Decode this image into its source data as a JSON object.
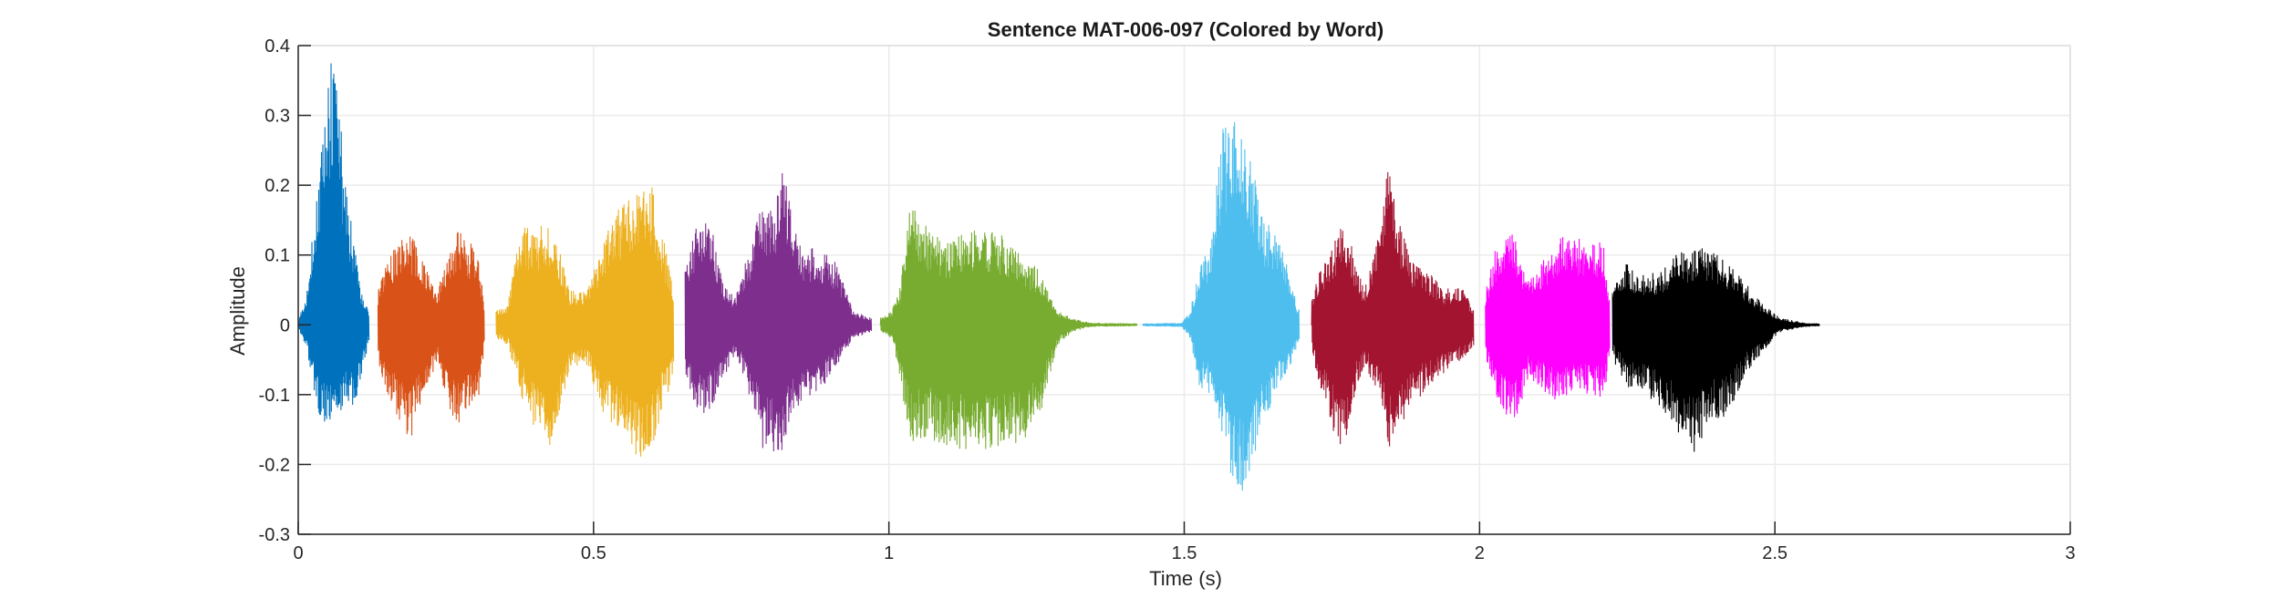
{
  "chart_data": {
    "type": "line",
    "title": "Sentence MAT-006-097 (Colored by Word)",
    "xlabel": "Time (s)",
    "ylabel": "Amplitude",
    "xlim": [
      0,
      3
    ],
    "ylim": [
      -0.3,
      0.4
    ],
    "grid": true,
    "x_ticks": [
      0,
      0.5,
      1,
      1.5,
      2,
      2.5,
      3
    ],
    "x_tick_labels": [
      "0",
      "0.5",
      "1",
      "1.5",
      "2",
      "2.5",
      "3"
    ],
    "y_ticks": [
      -0.3,
      -0.2,
      -0.1,
      0,
      0.1,
      0.2,
      0.3,
      0.4
    ],
    "y_tick_labels": [
      "-0.3",
      "-0.2",
      "-0.1",
      "0",
      "0.1",
      "0.2",
      "0.3",
      "0.4"
    ],
    "series": [
      {
        "color": "#0072BD",
        "envelope": [
          [
            0.0,
            0.005,
            -0.005
          ],
          [
            0.015,
            0.05,
            -0.04
          ],
          [
            0.03,
            0.18,
            -0.12
          ],
          [
            0.045,
            0.3,
            -0.15
          ],
          [
            0.055,
            0.38,
            -0.15
          ],
          [
            0.065,
            0.37,
            -0.14
          ],
          [
            0.08,
            0.2,
            -0.12
          ],
          [
            0.095,
            0.12,
            -0.12
          ],
          [
            0.105,
            0.05,
            -0.08
          ],
          [
            0.12,
            0.02,
            -0.02
          ]
        ]
      },
      {
        "color": "#D95319",
        "envelope": [
          [
            0.135,
            0.05,
            -0.06
          ],
          [
            0.155,
            0.1,
            -0.11
          ],
          [
            0.17,
            0.12,
            -0.14
          ],
          [
            0.19,
            0.13,
            -0.17
          ],
          [
            0.205,
            0.11,
            -0.12
          ],
          [
            0.225,
            0.06,
            -0.08
          ],
          [
            0.235,
            0.05,
            -0.05
          ],
          [
            0.255,
            0.1,
            -0.13
          ],
          [
            0.27,
            0.14,
            -0.15
          ],
          [
            0.29,
            0.12,
            -0.12
          ],
          [
            0.305,
            0.1,
            -0.12
          ],
          [
            0.315,
            0.03,
            -0.03
          ]
        ]
      },
      {
        "color": "#EDB120",
        "envelope": [
          [
            0.335,
            0.02,
            -0.02
          ],
          [
            0.355,
            0.03,
            -0.03
          ],
          [
            0.375,
            0.14,
            -0.1
          ],
          [
            0.405,
            0.14,
            -0.16
          ],
          [
            0.43,
            0.15,
            -0.18
          ],
          [
            0.46,
            0.05,
            -0.06
          ],
          [
            0.49,
            0.05,
            -0.06
          ],
          [
            0.51,
            0.1,
            -0.12
          ],
          [
            0.535,
            0.16,
            -0.15
          ],
          [
            0.56,
            0.18,
            -0.18
          ],
          [
            0.58,
            0.2,
            -0.19
          ],
          [
            0.6,
            0.2,
            -0.18
          ],
          [
            0.615,
            0.14,
            -0.12
          ],
          [
            0.635,
            0.05,
            -0.08
          ]
        ]
      },
      {
        "color": "#7E2F8E",
        "envelope": [
          [
            0.655,
            0.08,
            -0.08
          ],
          [
            0.68,
            0.16,
            -0.13
          ],
          [
            0.7,
            0.14,
            -0.12
          ],
          [
            0.72,
            0.06,
            -0.08
          ],
          [
            0.74,
            0.04,
            -0.04
          ],
          [
            0.76,
            0.1,
            -0.1
          ],
          [
            0.785,
            0.18,
            -0.18
          ],
          [
            0.805,
            0.16,
            -0.19
          ],
          [
            0.82,
            0.22,
            -0.18
          ],
          [
            0.835,
            0.17,
            -0.13
          ],
          [
            0.855,
            0.11,
            -0.12
          ],
          [
            0.88,
            0.11,
            -0.1
          ],
          [
            0.91,
            0.09,
            -0.06
          ],
          [
            0.94,
            0.02,
            -0.02
          ],
          [
            0.97,
            0.01,
            -0.01
          ]
        ]
      },
      {
        "color": "#77AC30",
        "envelope": [
          [
            0.985,
            0.01,
            -0.01
          ],
          [
            1.005,
            0.02,
            -0.02
          ],
          [
            1.02,
            0.06,
            -0.09
          ],
          [
            1.035,
            0.18,
            -0.17
          ],
          [
            1.065,
            0.14,
            -0.16
          ],
          [
            1.1,
            0.12,
            -0.18
          ],
          [
            1.15,
            0.14,
            -0.18
          ],
          [
            1.19,
            0.13,
            -0.18
          ],
          [
            1.225,
            0.1,
            -0.17
          ],
          [
            1.255,
            0.08,
            -0.13
          ],
          [
            1.27,
            0.05,
            -0.08
          ],
          [
            1.285,
            0.02,
            -0.03
          ],
          [
            1.31,
            0.01,
            -0.01
          ],
          [
            1.34,
            0.003,
            -0.003
          ],
          [
            1.42,
            0.002,
            -0.002
          ]
        ]
      },
      {
        "color": "#4DBEEE",
        "envelope": [
          [
            1.43,
            0.002,
            -0.002
          ],
          [
            1.495,
            0.003,
            -0.003
          ],
          [
            1.51,
            0.02,
            -0.02
          ],
          [
            1.525,
            0.08,
            -0.09
          ],
          [
            1.545,
            0.12,
            -0.1
          ],
          [
            1.565,
            0.28,
            -0.16
          ],
          [
            1.58,
            0.3,
            -0.22
          ],
          [
            1.595,
            0.29,
            -0.25
          ],
          [
            1.615,
            0.24,
            -0.2
          ],
          [
            1.635,
            0.15,
            -0.14
          ],
          [
            1.66,
            0.14,
            -0.09
          ],
          [
            1.68,
            0.06,
            -0.06
          ],
          [
            1.695,
            0.02,
            -0.02
          ]
        ]
      },
      {
        "color": "#A2142F",
        "envelope": [
          [
            1.715,
            0.04,
            -0.04
          ],
          [
            1.735,
            0.09,
            -0.11
          ],
          [
            1.755,
            0.12,
            -0.16
          ],
          [
            1.77,
            0.16,
            -0.18
          ],
          [
            1.79,
            0.09,
            -0.09
          ],
          [
            1.805,
            0.05,
            -0.06
          ],
          [
            1.83,
            0.13,
            -0.1
          ],
          [
            1.845,
            0.23,
            -0.18
          ],
          [
            1.865,
            0.15,
            -0.15
          ],
          [
            1.885,
            0.09,
            -0.12
          ],
          [
            1.91,
            0.08,
            -0.09
          ],
          [
            1.94,
            0.05,
            -0.07
          ],
          [
            1.97,
            0.06,
            -0.05
          ],
          [
            1.99,
            0.02,
            -0.03
          ]
        ]
      },
      {
        "color": "#FF00FF",
        "envelope": [
          [
            2.01,
            0.05,
            -0.05
          ],
          [
            2.03,
            0.12,
            -0.11
          ],
          [
            2.05,
            0.14,
            -0.14
          ],
          [
            2.065,
            0.12,
            -0.13
          ],
          [
            2.08,
            0.06,
            -0.08
          ],
          [
            2.1,
            0.08,
            -0.09
          ],
          [
            2.125,
            0.12,
            -0.11
          ],
          [
            2.15,
            0.13,
            -0.1
          ],
          [
            2.18,
            0.12,
            -0.1
          ],
          [
            2.21,
            0.12,
            -0.11
          ],
          [
            2.22,
            0.04,
            -0.04
          ]
        ]
      },
      {
        "color": "#000000",
        "envelope": [
          [
            2.225,
            0.05,
            -0.05
          ],
          [
            2.25,
            0.09,
            -0.09
          ],
          [
            2.28,
            0.07,
            -0.1
          ],
          [
            2.31,
            0.08,
            -0.12
          ],
          [
            2.33,
            0.1,
            -0.15
          ],
          [
            2.36,
            0.11,
            -0.19
          ],
          [
            2.39,
            0.11,
            -0.14
          ],
          [
            2.42,
            0.09,
            -0.13
          ],
          [
            2.45,
            0.06,
            -0.07
          ],
          [
            2.48,
            0.03,
            -0.04
          ],
          [
            2.51,
            0.01,
            -0.01
          ],
          [
            2.55,
            0.003,
            -0.003
          ],
          [
            2.575,
            0.002,
            -0.002
          ]
        ]
      }
    ]
  },
  "colors": {
    "grid": "#ebebeb",
    "axis": "#262626",
    "box": "#d9d9d9"
  }
}
